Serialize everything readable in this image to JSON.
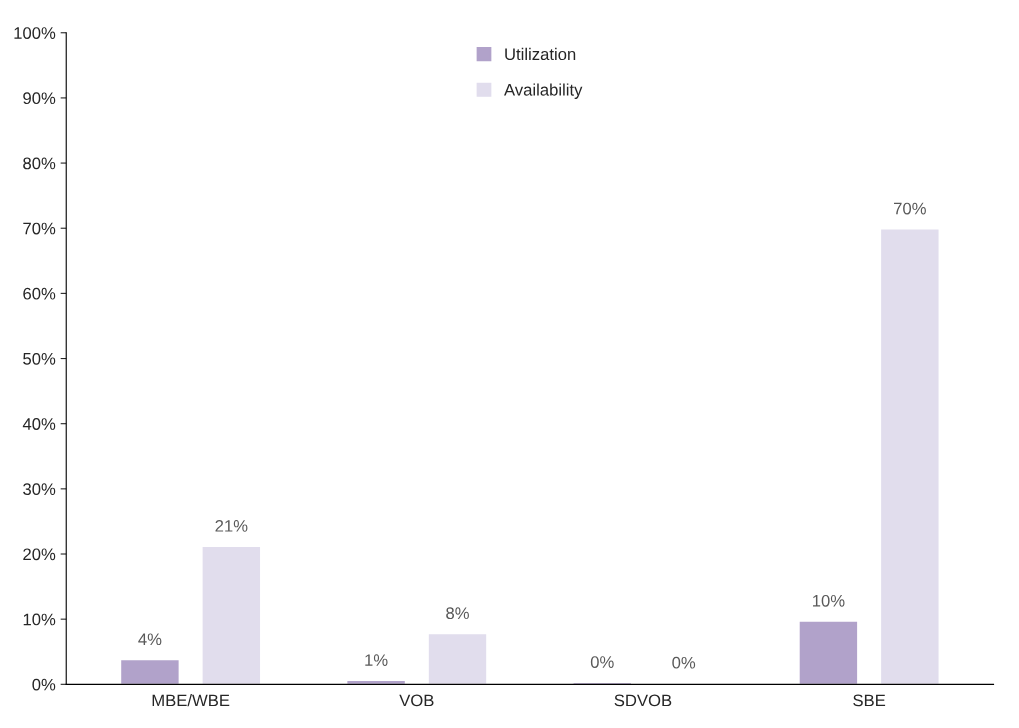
{
  "chart_data": {
    "type": "bar",
    "categories": [
      "MBE/WBE",
      "VOB",
      "SDVOB",
      "SBE"
    ],
    "series": [
      {
        "name": "Utilization",
        "color": "#b1a2ca",
        "values": [
          3.8,
          0.6,
          0.3,
          9.7
        ],
        "value_labels": [
          "4%",
          "1%",
          "0%",
          "10%"
        ]
      },
      {
        "name": "Availability",
        "color": "#e1dded",
        "values": [
          21.2,
          7.8,
          0.2,
          69.9
        ],
        "value_labels": [
          "21%",
          "8%",
          "0%",
          "70%"
        ]
      }
    ],
    "ylim": [
      0,
      100
    ],
    "yticks": [
      {
        "value": 0,
        "label": "0%"
      },
      {
        "value": 10,
        "label": "10%"
      },
      {
        "value": 20,
        "label": "20%"
      },
      {
        "value": 30,
        "label": "30%"
      },
      {
        "value": 40,
        "label": "40%"
      },
      {
        "value": 50,
        "label": "50%"
      },
      {
        "value": 60,
        "label": "60%"
      },
      {
        "value": 70,
        "label": "70%"
      },
      {
        "value": 80,
        "label": "80%"
      },
      {
        "value": 90,
        "label": "90%"
      },
      {
        "value": 100,
        "label": "100%"
      }
    ],
    "grid": false,
    "legend": "top"
  }
}
